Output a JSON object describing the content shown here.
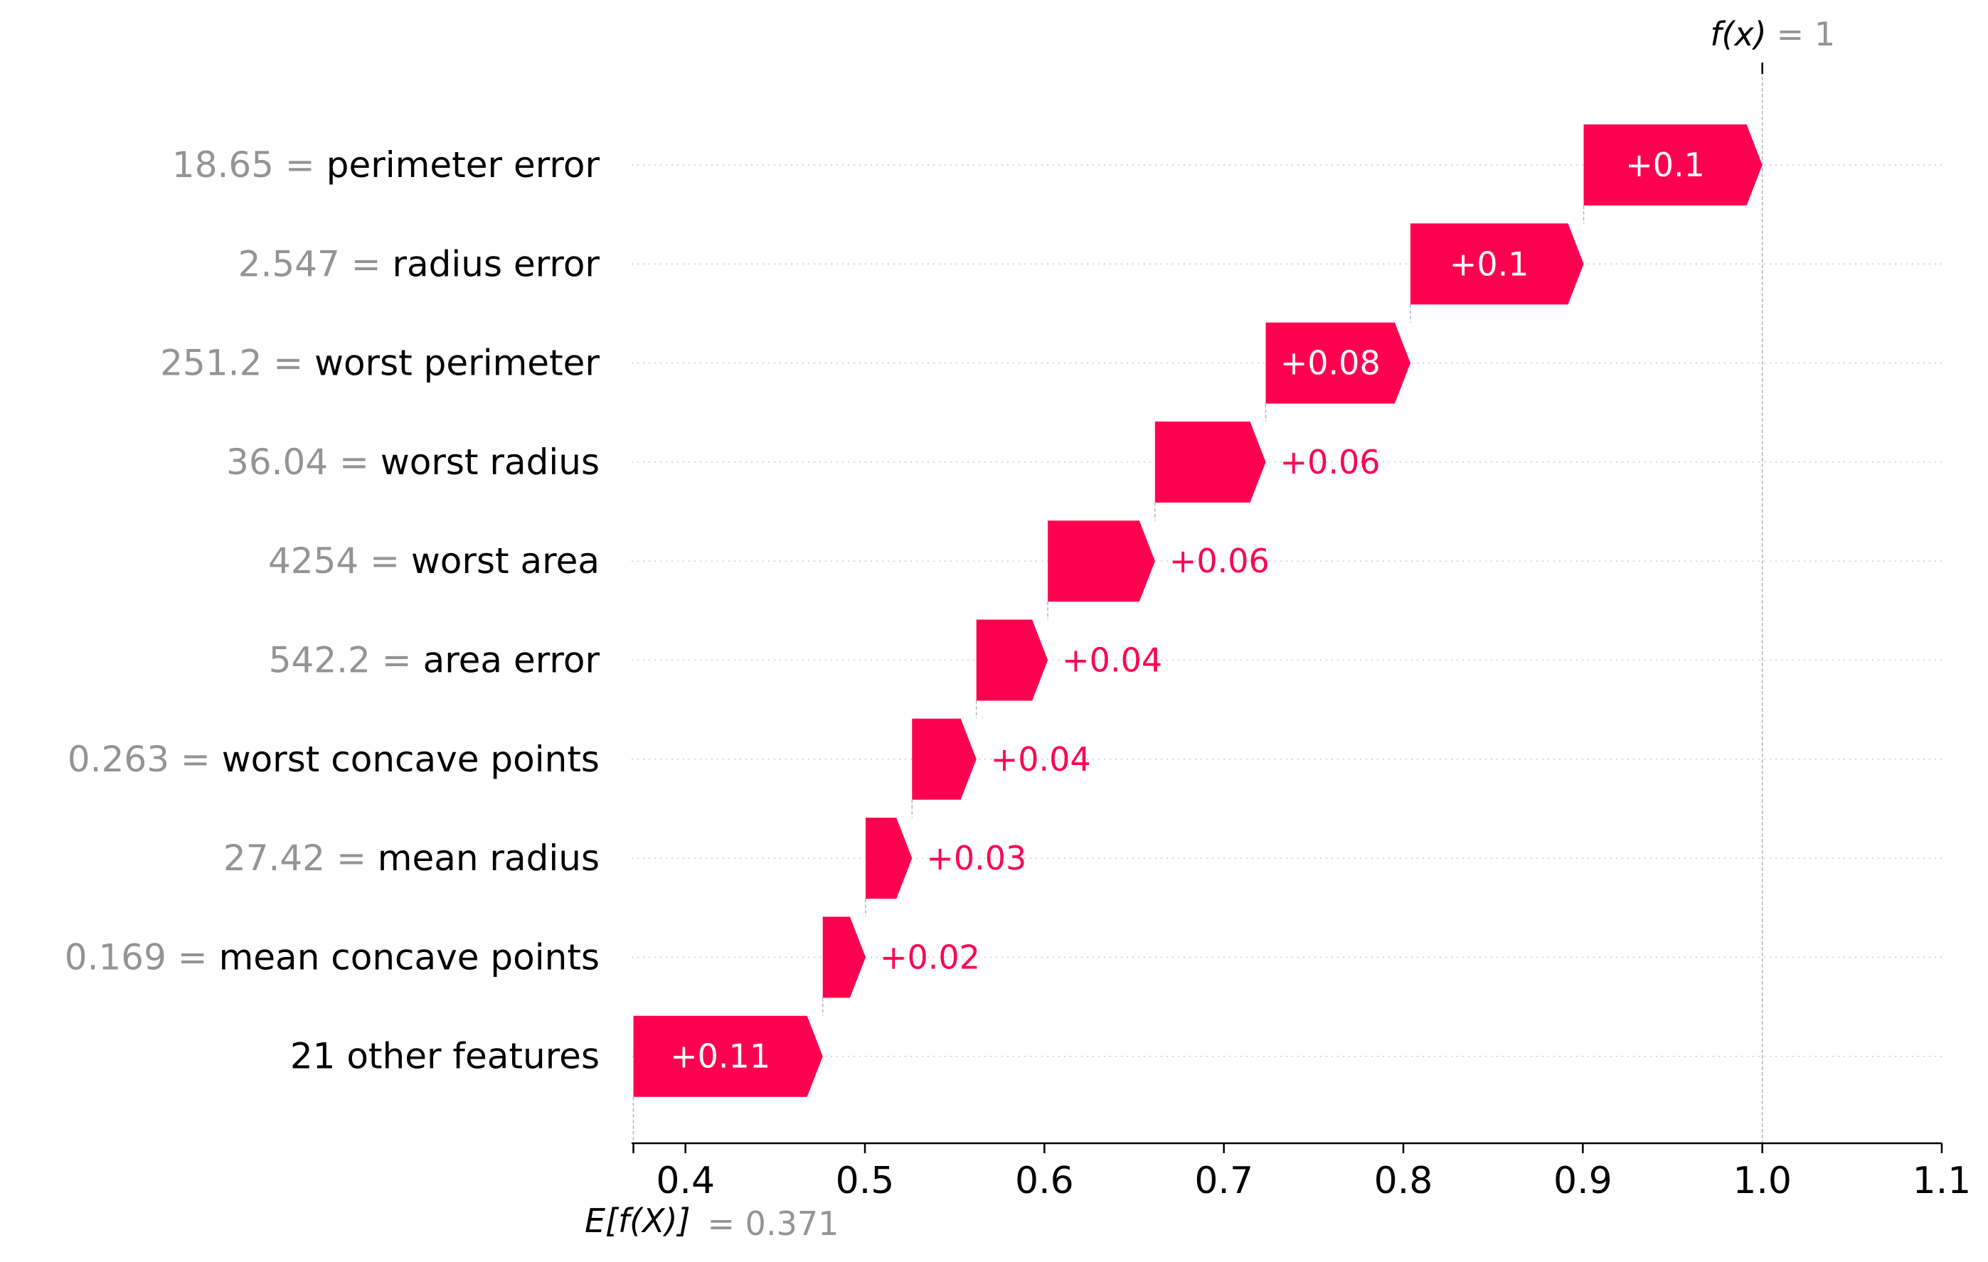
{
  "chart_data": {
    "type": "waterfall",
    "base_value": 0.371,
    "base_label": "E[f(X)]",
    "base_value_text": "= 0.371",
    "output_value": 1,
    "output_label": "f(x)",
    "output_value_text": "= 1",
    "xlim": [
      0.37,
      1.1
    ],
    "xticks": [
      0.4,
      0.5,
      0.6,
      0.7,
      0.8,
      0.9,
      1.0,
      1.1
    ],
    "xtick_labels": [
      "0.4",
      "0.5",
      "0.6",
      "0.7",
      "0.8",
      "0.9",
      "1.0",
      "1.1"
    ],
    "positive_color": "#ff0051",
    "features": [
      {
        "value": "18.65",
        "name": "perimeter error",
        "contribution": 0.1,
        "label": "+0.1"
      },
      {
        "value": "2.547",
        "name": "radius error",
        "contribution": 0.097,
        "label": "+0.1"
      },
      {
        "value": "251.2",
        "name": "worst perimeter",
        "contribution": 0.081,
        "label": "+0.08"
      },
      {
        "value": "36.04",
        "name": "worst radius",
        "contribution": 0.062,
        "label": "+0.06"
      },
      {
        "value": "4254",
        "name": "worst area",
        "contribution": 0.06,
        "label": "+0.06"
      },
      {
        "value": "542.2",
        "name": "area error",
        "contribution": 0.04,
        "label": "+0.04"
      },
      {
        "value": "0.263",
        "name": "worst concave points",
        "contribution": 0.036,
        "label": "+0.04"
      },
      {
        "value": "27.42",
        "name": "mean radius",
        "contribution": 0.026,
        "label": "+0.03"
      },
      {
        "value": "0.169",
        "name": "mean concave points",
        "contribution": 0.024,
        "label": "+0.02"
      },
      {
        "value": "",
        "name": "21 other features",
        "contribution": 0.106,
        "label": "+0.11"
      }
    ]
  }
}
